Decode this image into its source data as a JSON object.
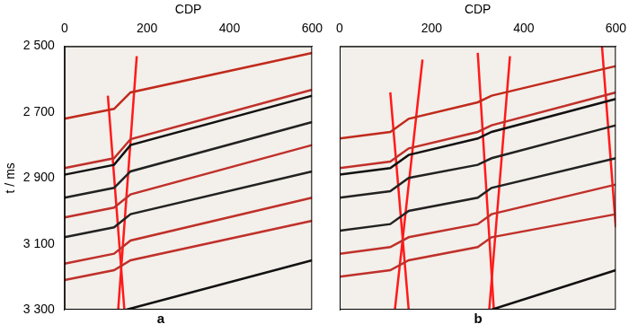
{
  "chart_data": [
    {
      "type": "line",
      "title": "a",
      "x_label": "CDP",
      "y_label": "t / ms",
      "xlim": [
        0,
        600
      ],
      "xticks": [
        0,
        200,
        400,
        600
      ],
      "ylim": [
        2500,
        3300
      ],
      "yticks": [
        {
          "value": 2500,
          "label": "2 500"
        },
        {
          "value": 2700,
          "label": "2 700"
        },
        {
          "value": 2900,
          "label": "2 900"
        },
        {
          "value": 3100,
          "label": "3 100"
        },
        {
          "value": 3300,
          "label": "3 300"
        }
      ],
      "grid": false,
      "line_style": "solid",
      "series": [
        {
          "color": "#c02a1c",
          "x": [
            0,
            120,
            160,
            600
          ],
          "values": [
            2720,
            2690,
            2640,
            2520
          ]
        },
        {
          "color": "#c0302a",
          "x": [
            0,
            120,
            160,
            600
          ],
          "values": [
            2870,
            2840,
            2782,
            2632
          ]
        },
        {
          "color": "#111111",
          "x": [
            0,
            120,
            160,
            600
          ],
          "values": [
            2890,
            2860,
            2800,
            2650
          ]
        },
        {
          "color": "#222222",
          "x": [
            0,
            120,
            160,
            600
          ],
          "values": [
            2960,
            2930,
            2880,
            2730
          ]
        },
        {
          "color": "#c0302a",
          "x": [
            0,
            120,
            160,
            600
          ],
          "values": [
            3020,
            2990,
            2950,
            2800
          ]
        },
        {
          "color": "#222222",
          "x": [
            0,
            120,
            160,
            600
          ],
          "values": [
            3080,
            3050,
            3010,
            2880
          ]
        },
        {
          "color": "#c0302a",
          "x": [
            0,
            120,
            160,
            600
          ],
          "values": [
            3160,
            3130,
            3090,
            2960
          ]
        },
        {
          "color": "#c0302a",
          "x": [
            0,
            120,
            160,
            600
          ],
          "values": [
            3210,
            3180,
            3150,
            3030
          ]
        },
        {
          "color": "#111111",
          "x": [
            150,
            600
          ],
          "values": [
            3300,
            3150
          ]
        },
        {
          "color": "#ff1a1a",
          "x": [
            105,
            145
          ],
          "values": [
            2650,
            3300
          ]
        },
        {
          "color": "#ff1a1a",
          "x": [
            175,
            130
          ],
          "values": [
            2530,
            3300
          ]
        }
      ]
    },
    {
      "type": "line",
      "title": "b",
      "x_label": "CDP",
      "xlim": [
        0,
        600
      ],
      "xticks": [
        0,
        200,
        400,
        600
      ],
      "ylim": [
        2500,
        3300
      ],
      "yticks": [
        2500,
        2700,
        2900,
        3100,
        3300
      ],
      "tick_labels": "x",
      "grid": false,
      "line_style": "solid",
      "series": [
        {
          "color": "#c02a1c",
          "x": [
            0,
            110,
            150,
            300,
            330,
            600
          ],
          "values": [
            2780,
            2760,
            2720,
            2670,
            2650,
            2560
          ]
        },
        {
          "color": "#c0302a",
          "x": [
            0,
            110,
            150,
            300,
            330,
            600
          ],
          "values": [
            2870,
            2850,
            2810,
            2760,
            2740,
            2640
          ]
        },
        {
          "color": "#111111",
          "x": [
            0,
            110,
            150,
            300,
            330,
            600
          ],
          "values": [
            2890,
            2870,
            2830,
            2780,
            2760,
            2660
          ]
        },
        {
          "color": "#222222",
          "x": [
            0,
            110,
            150,
            300,
            330,
            600
          ],
          "values": [
            2960,
            2940,
            2900,
            2860,
            2840,
            2740
          ]
        },
        {
          "color": "#222222",
          "x": [
            0,
            110,
            150,
            300,
            330,
            600
          ],
          "values": [
            3060,
            3040,
            3000,
            2960,
            2930,
            2840
          ]
        },
        {
          "color": "#c0302a",
          "x": [
            0,
            110,
            150,
            300,
            330,
            600
          ],
          "values": [
            3130,
            3110,
            3080,
            3040,
            3010,
            2920
          ]
        },
        {
          "color": "#c0302a",
          "x": [
            0,
            110,
            150,
            300,
            330,
            600
          ],
          "values": [
            3200,
            3180,
            3150,
            3110,
            3080,
            3010
          ]
        },
        {
          "color": "#111111",
          "x": [
            330,
            600
          ],
          "values": [
            3300,
            3180
          ]
        },
        {
          "color": "#ff1a1a",
          "x": [
            110,
            150
          ],
          "values": [
            2640,
            3300
          ]
        },
        {
          "color": "#ff1a1a",
          "x": [
            180,
            120
          ],
          "values": [
            2540,
            3300
          ]
        },
        {
          "color": "#ff1a1a",
          "x": [
            300,
            335
          ],
          "values": [
            2520,
            3300
          ]
        },
        {
          "color": "#ff1a1a",
          "x": [
            370,
            325
          ],
          "values": [
            2530,
            3300
          ]
        },
        {
          "color": "#ff1a1a",
          "x": [
            570,
            600
          ],
          "values": [
            2500,
            3050
          ]
        }
      ]
    }
  ]
}
